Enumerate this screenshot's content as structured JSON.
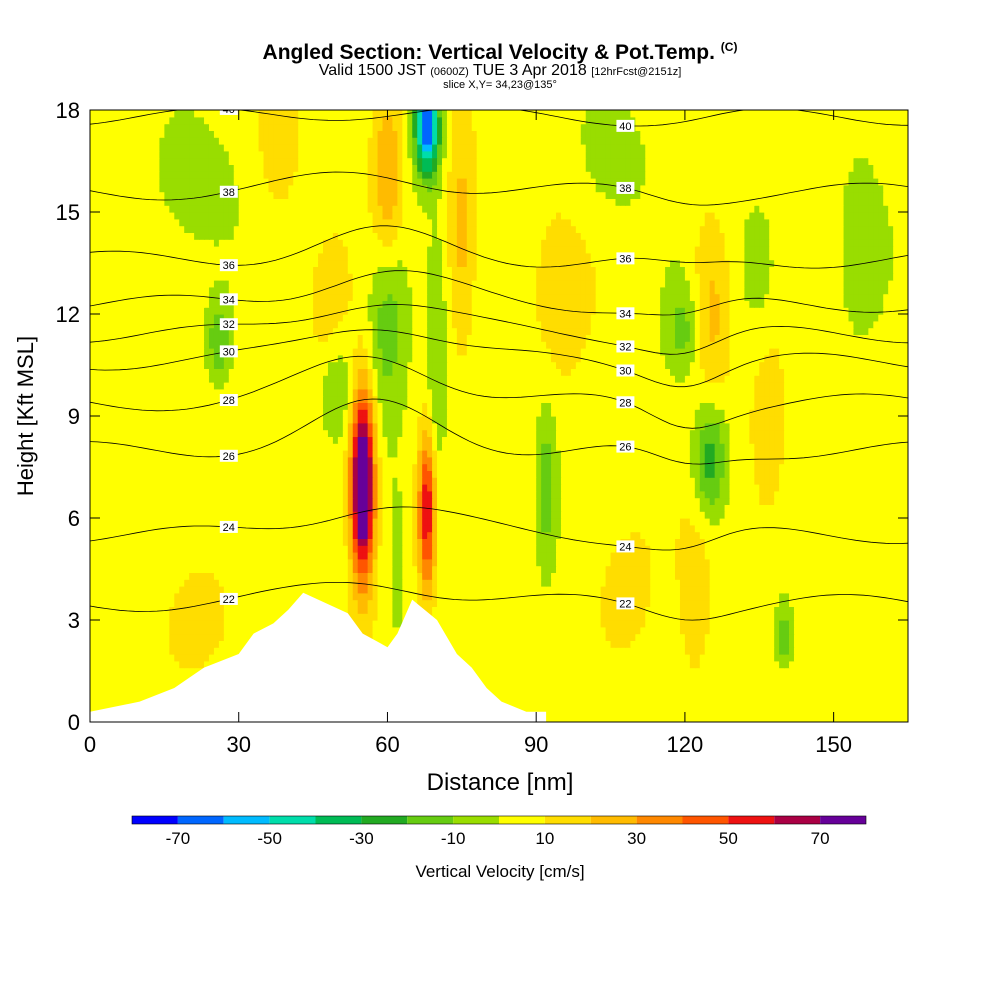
{
  "header": {
    "title": "Angled Section: Vertical Velocity & Pot.Temp.",
    "title_unit": "(C)",
    "valid_prefix": "Valid 1500 JST",
    "valid_z": "(0600Z)",
    "valid_date": "TUE 3 Apr 2018",
    "forecast": "[12hrFcst@2151z]",
    "slice": "slice X,Y= 34,23@135°"
  },
  "chart_data": {
    "type": "heatmap",
    "title": "Angled Section: Vertical Velocity & Pot.Temp.",
    "xlabel": "Distance [nm]",
    "ylabel": "Height [Kft MSL]",
    "xlim": [
      0,
      165
    ],
    "ylim": [
      0,
      18
    ],
    "x_ticks": [
      0,
      30,
      60,
      90,
      120,
      150
    ],
    "y_ticks": [
      0,
      3,
      6,
      9,
      12,
      15,
      18
    ],
    "colorbar": {
      "label": "Vertical Velocity [cm/s]",
      "tick_labels": [
        -70,
        -50,
        -30,
        -10,
        10,
        30,
        50,
        70
      ],
      "bounds": [
        -80,
        -70,
        -60,
        -50,
        -40,
        -30,
        -20,
        -10,
        0,
        10,
        20,
        30,
        40,
        50,
        60,
        70,
        80
      ],
      "colors": [
        "#0000ff",
        "#0066ff",
        "#00bbff",
        "#00ddaa",
        "#00bb55",
        "#22aa22",
        "#66cc11",
        "#99dd00",
        "#ffff00",
        "#ffdd00",
        "#ffbb00",
        "#ff8800",
        "#ff5500",
        "#ee1111",
        "#aa0044",
        "#660099"
      ]
    },
    "isotherms": {
      "levels": [
        22,
        24,
        26,
        28,
        30,
        32,
        34,
        36,
        38,
        40
      ],
      "base_heights_kft": [
        3.5,
        5.5,
        8.0,
        9.4,
        10.6,
        11.4,
        12.3,
        13.6,
        15.6,
        17.8
      ]
    },
    "terrain": [
      {
        "x": 0,
        "h": 0.3
      },
      {
        "x": 10,
        "h": 0.6
      },
      {
        "x": 17,
        "h": 1.0
      },
      {
        "x": 20,
        "h": 1.3
      },
      {
        "x": 23,
        "h": 1.6
      },
      {
        "x": 30,
        "h": 2.0
      },
      {
        "x": 33,
        "h": 2.6
      },
      {
        "x": 37,
        "h": 2.9
      },
      {
        "x": 40,
        "h": 3.3
      },
      {
        "x": 43,
        "h": 3.8
      },
      {
        "x": 52,
        "h": 3.2
      },
      {
        "x": 55,
        "h": 2.6
      },
      {
        "x": 60,
        "h": 2.2
      },
      {
        "x": 62,
        "h": 2.6
      },
      {
        "x": 65,
        "h": 3.6
      },
      {
        "x": 70,
        "h": 3.0
      },
      {
        "x": 74,
        "h": 2.0
      },
      {
        "x": 77,
        "h": 1.6
      },
      {
        "x": 80,
        "h": 1.0
      },
      {
        "x": 83,
        "h": 0.6
      },
      {
        "x": 88,
        "h": 0.3
      },
      {
        "x": 92,
        "h": 0.3
      }
    ]
  }
}
